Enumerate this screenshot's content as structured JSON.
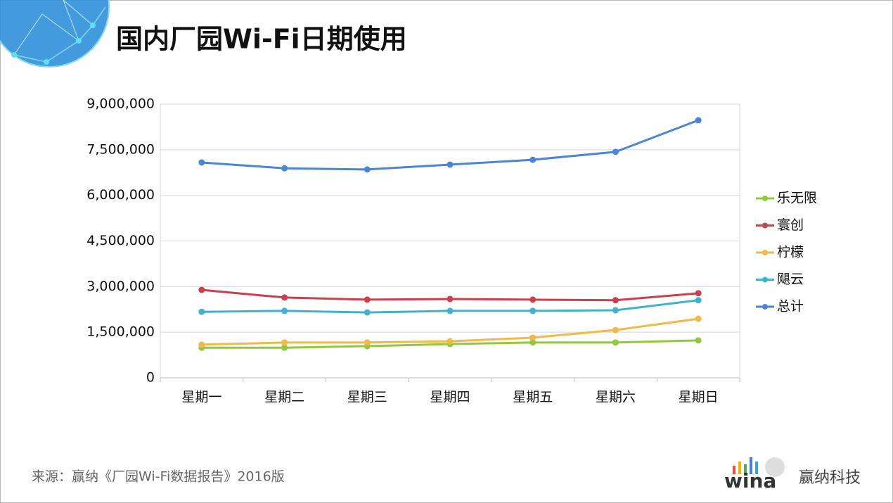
{
  "chart_data": {
    "type": "line",
    "title": "国内厂园Wi-Fi日期使用",
    "categories": [
      "星期一",
      "星期二",
      "星期三",
      "星期四",
      "星期五",
      "星期六",
      "星期日"
    ],
    "series": [
      {
        "name": "乐无限",
        "color": "#92c83e",
        "values": [
          990000,
          990000,
          1040000,
          1110000,
          1160000,
          1160000,
          1230000
        ]
      },
      {
        "name": "寰创",
        "color": "#c9404f",
        "values": [
          2890000,
          2640000,
          2570000,
          2590000,
          2570000,
          2550000,
          2780000
        ]
      },
      {
        "name": "柠檬",
        "color": "#f0b94a",
        "values": [
          1090000,
          1160000,
          1160000,
          1200000,
          1320000,
          1570000,
          1940000
        ]
      },
      {
        "name": "飓云",
        "color": "#44b0d0",
        "values": [
          2170000,
          2200000,
          2150000,
          2200000,
          2200000,
          2220000,
          2550000
        ]
      },
      {
        "name": "总计",
        "color": "#4b86d4",
        "values": [
          7080000,
          6890000,
          6850000,
          7010000,
          7170000,
          7430000,
          8470000
        ]
      }
    ],
    "ylim": [
      0,
      9000000
    ],
    "yticks": [
      0,
      {
        "value": 1500000,
        "label": "1,500,000"
      },
      {
        "value": 3000000,
        "label": "3,000,000"
      },
      {
        "value": 4500000,
        "label": "4,500,000"
      },
      {
        "value": 6000000,
        "label": "6,000,000"
      },
      {
        "value": 7500000,
        "label": "7,500,000"
      },
      {
        "value": 9000000,
        "label": "9,000,000"
      }
    ],
    "grid": true,
    "legend": "right"
  },
  "footer": {
    "source": "来源：赢纳《厂园Wi-Fi数据报告》2016版",
    "logo_text": "wina",
    "brand": "赢纳科技"
  }
}
